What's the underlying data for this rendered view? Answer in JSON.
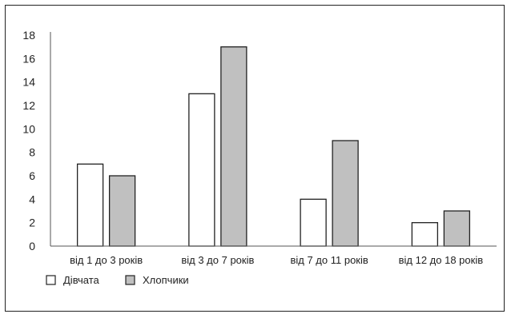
{
  "chart_data": {
    "type": "bar",
    "title": "",
    "xlabel": "",
    "ylabel": "",
    "categories": [
      "від 1 до 3 років",
      "від 3 до 7 років",
      "від 7 до 11 років",
      "від 12 до 18 років"
    ],
    "series": [
      {
        "name": "Дівчата",
        "values": [
          7,
          13,
          4,
          2
        ],
        "color": "#ffffff"
      },
      {
        "name": "Хлопчики",
        "values": [
          6,
          17,
          9,
          3
        ],
        "color": "#c0c0c0"
      }
    ],
    "ylim": [
      0,
      18
    ],
    "yticks": [
      0,
      2,
      4,
      6,
      8,
      10,
      12,
      14,
      16,
      18
    ],
    "grid": false,
    "legend": "bottom-left",
    "bar_stroke_color": "#222222",
    "axis_color": "#555555"
  }
}
